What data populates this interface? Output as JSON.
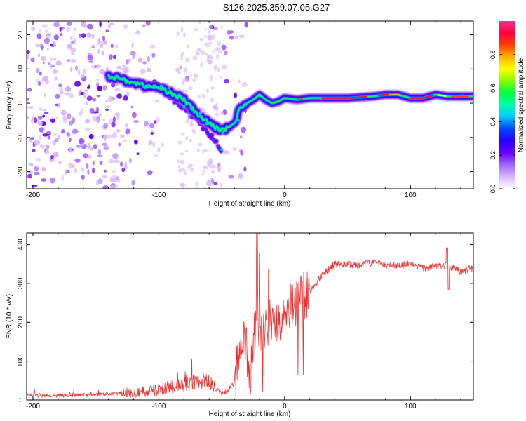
{
  "figure_title": "S126.2025.359.07.05.G27",
  "chart_data": [
    {
      "type": "heatmap",
      "title": "S126.2025.359.07.05.G27",
      "xlabel": "Height of straight line (km)",
      "ylabel": "Frequency (Hz)",
      "xlim": [
        -205,
        150
      ],
      "ylim": [
        -25,
        24
      ],
      "x_ticks": [
        -200,
        -100,
        0,
        100
      ],
      "y_ticks": [
        -20,
        -10,
        0,
        10,
        20
      ],
      "colorbar": {
        "label": "Normalized spectral amplitude",
        "range": [
          0,
          1
        ],
        "ticks": [
          0.0,
          0.2,
          0.4,
          0.6,
          0.8
        ],
        "colors": [
          "#ffffff",
          "#d9b8ff",
          "#a066ff",
          "#6a00ff",
          "#2800ff",
          "#0044ff",
          "#00c8ff",
          "#00ffb0",
          "#00ff40",
          "#80ff00",
          "#ffff00",
          "#ffb000",
          "#ff4000",
          "#ff0040",
          "#ff3090"
        ]
      },
      "ridge": {
        "x": [
          -140,
          -120,
          -110,
          -100,
          -90,
          -80,
          -70,
          -60,
          -50,
          -45,
          -40,
          -35,
          -30,
          -25,
          -20,
          -15,
          -10,
          -5,
          0,
          10,
          20,
          30,
          50,
          70,
          80,
          90,
          100,
          110,
          120,
          130,
          150
        ],
        "y": [
          8,
          6,
          5,
          4.5,
          3,
          1,
          -3,
          -6,
          -8,
          -7,
          -6,
          -1,
          0,
          1,
          2.5,
          1,
          0,
          0.5,
          1.5,
          1,
          1.5,
          1.5,
          1.5,
          2,
          2.5,
          2.5,
          1.5,
          1.5,
          2.5,
          2,
          2
        ]
      },
      "branch": {
        "x": [
          -95,
          -85,
          -75,
          -65,
          -55,
          -50
        ],
        "y": [
          3,
          0,
          -3,
          -7,
          -11,
          -14
        ]
      }
    },
    {
      "type": "line",
      "xlabel": "Height of straight line (km)",
      "ylabel": "SNR (10 * v/v)",
      "xlim": [
        -205,
        150
      ],
      "ylim": [
        0,
        430
      ],
      "x_ticks": [
        -200,
        -100,
        0,
        100
      ],
      "y_ticks": [
        0,
        100,
        200,
        300,
        400
      ],
      "series": [
        {
          "name": "SNR",
          "color": "#ee3030",
          "x": [
            -205,
            -190,
            -170,
            -150,
            -130,
            -110,
            -100,
            -90,
            -80,
            -70,
            -60,
            -50,
            -45,
            -40,
            -36,
            -33,
            -30,
            -27,
            -25,
            -22,
            -20,
            -15,
            -10,
            -5,
            0,
            5,
            10,
            15,
            20,
            25,
            30,
            40,
            50,
            60,
            70,
            80,
            90,
            100,
            110,
            120,
            130,
            140,
            150
          ],
          "y": [
            12,
            11,
            12,
            13,
            18,
            22,
            25,
            35,
            40,
            48,
            45,
            15,
            25,
            45,
            110,
            160,
            120,
            70,
            150,
            190,
            160,
            190,
            210,
            200,
            230,
            240,
            250,
            270,
            280,
            300,
            320,
            350,
            350,
            345,
            355,
            350,
            345,
            350,
            340,
            345,
            345,
            330,
            340
          ]
        }
      ]
    }
  ]
}
